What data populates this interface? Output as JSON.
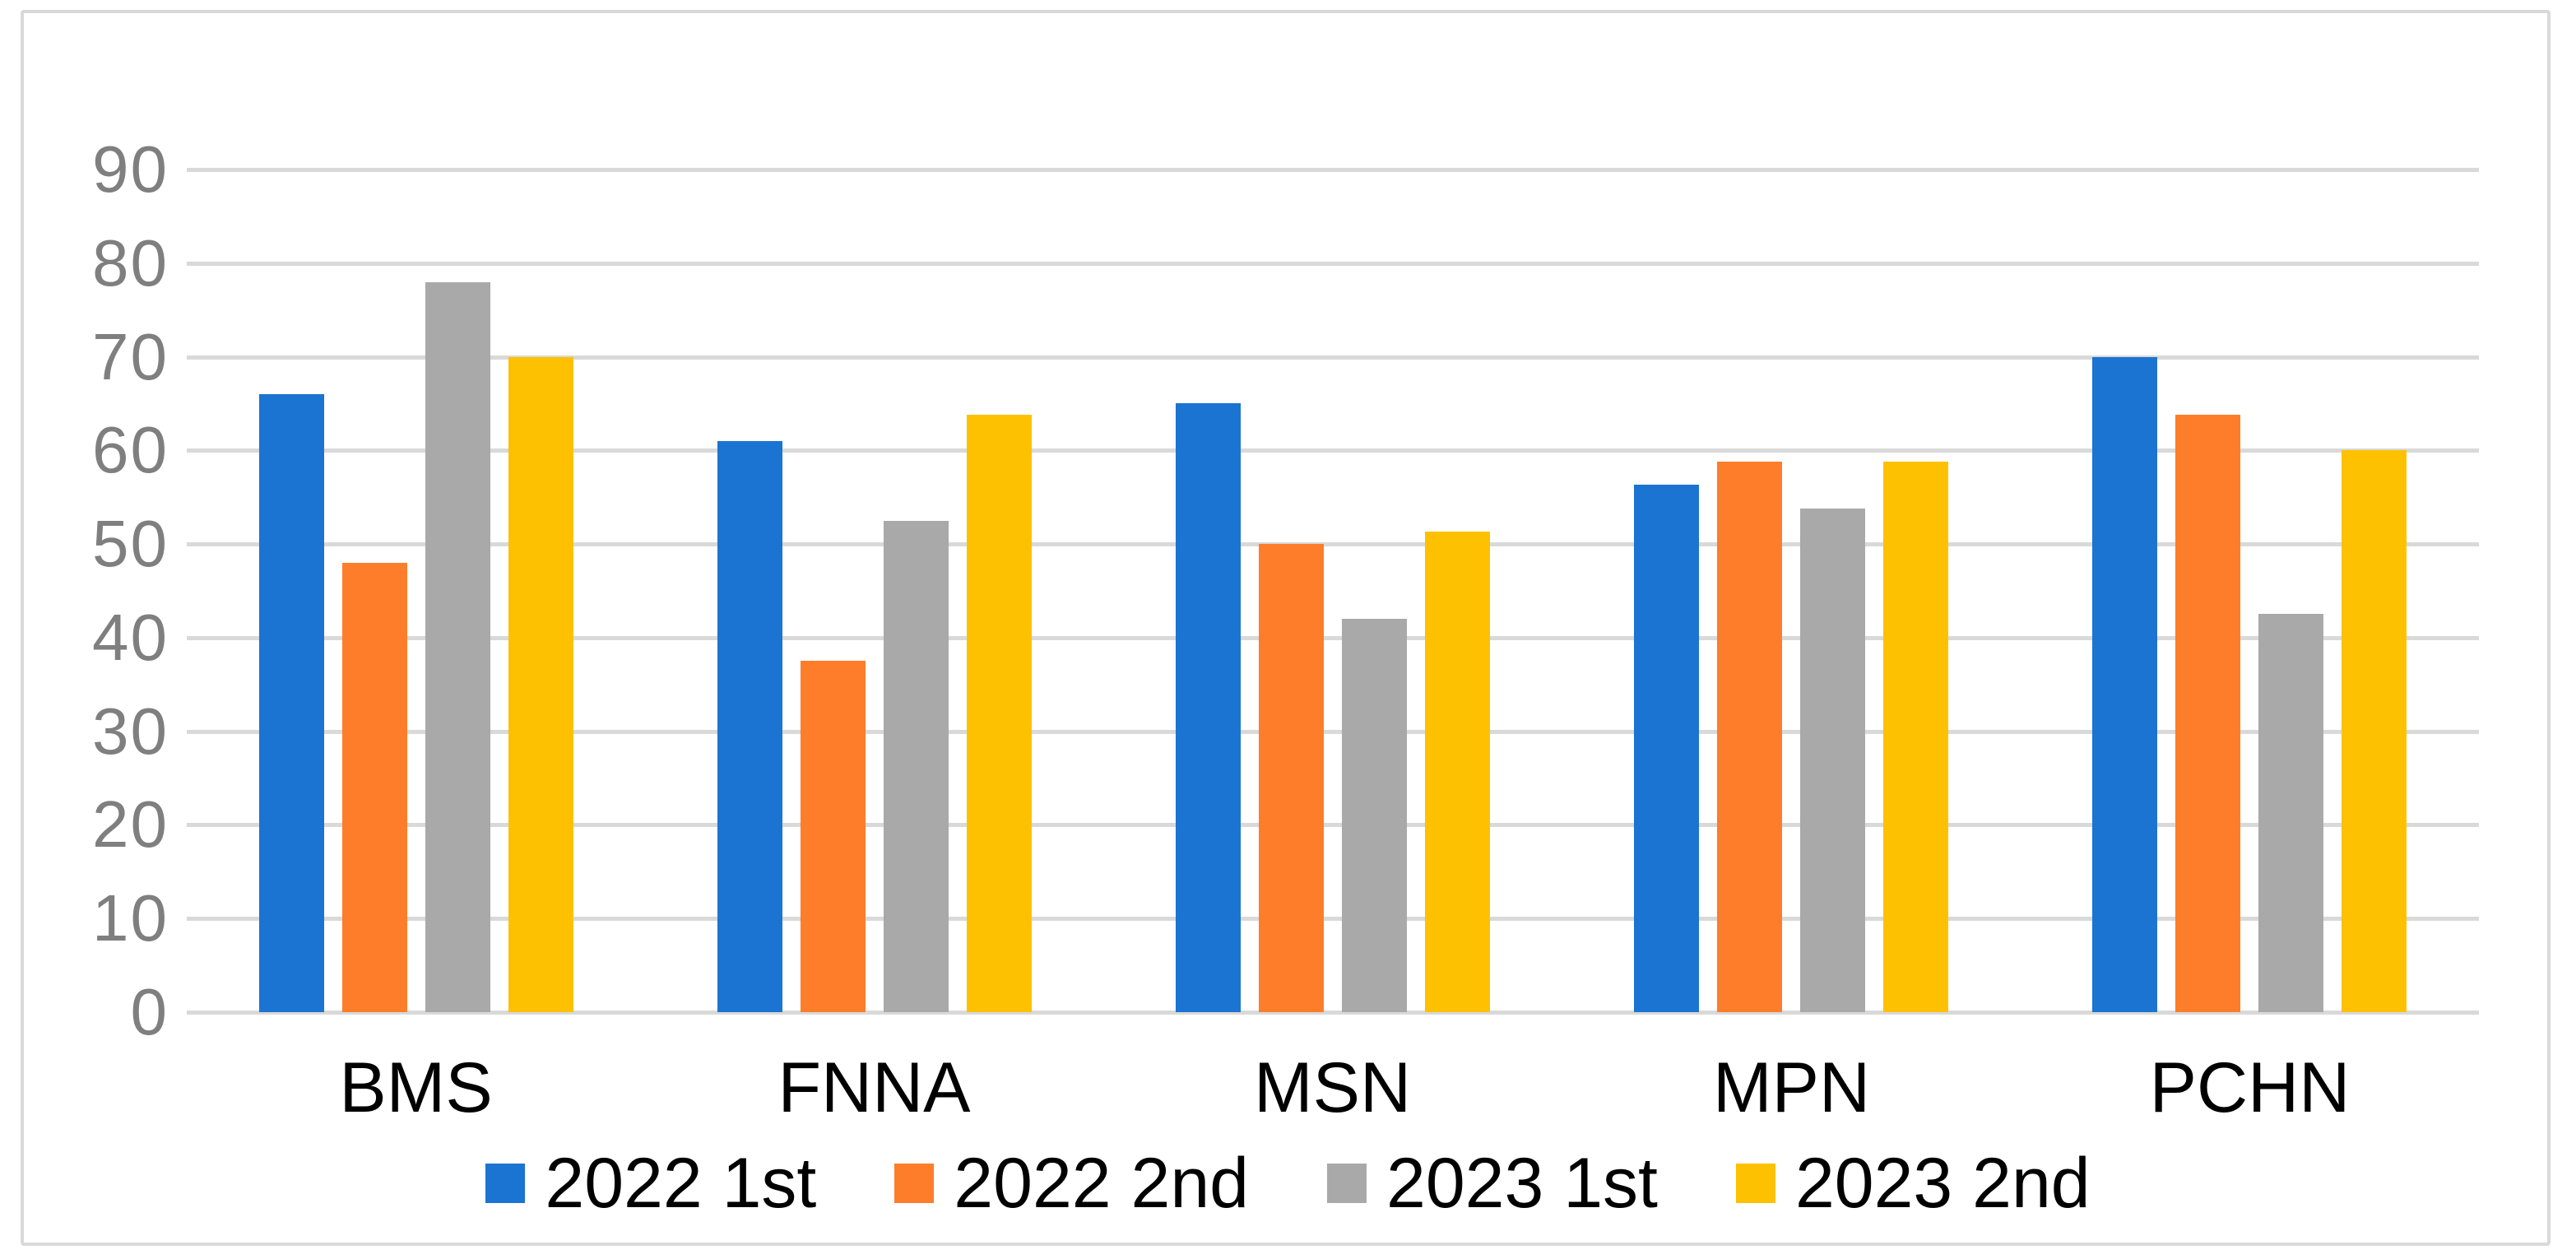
{
  "figure": {
    "background_color": "#ffffff",
    "border_color": "#d9d9d9",
    "gridline_color": "#d9d9d9",
    "ytick_label_color": "#7f7f7f",
    "text_color": "#000000"
  },
  "chart_data": {
    "type": "bar",
    "title": "",
    "xlabel": "",
    "ylabel": "",
    "categories": [
      "BMS",
      "FNNA",
      "MSN",
      "MPN",
      "PCHN"
    ],
    "series": [
      {
        "name": "2022 1st",
        "color": "#1b74d1",
        "values": [
          66,
          61,
          65,
          56.3,
          70
        ]
      },
      {
        "name": "2022 2nd",
        "color": "#fd7d2a",
        "values": [
          48,
          37.5,
          50,
          58.8,
          63.8
        ]
      },
      {
        "name": "2023 1st",
        "color": "#a9a9a9",
        "values": [
          78,
          52.5,
          42,
          53.8,
          42.5
        ]
      },
      {
        "name": "2023 2nd",
        "color": "#fdc101",
        "values": [
          70,
          63.8,
          51.3,
          58.8,
          60
        ]
      }
    ],
    "ylim": [
      0,
      90
    ],
    "ytick_step": 10,
    "ytick_labels": [
      "0",
      "10",
      "20",
      "30",
      "40",
      "50",
      "60",
      "70",
      "80",
      "90"
    ],
    "grid": "horizontal",
    "legend_position": "bottom"
  }
}
